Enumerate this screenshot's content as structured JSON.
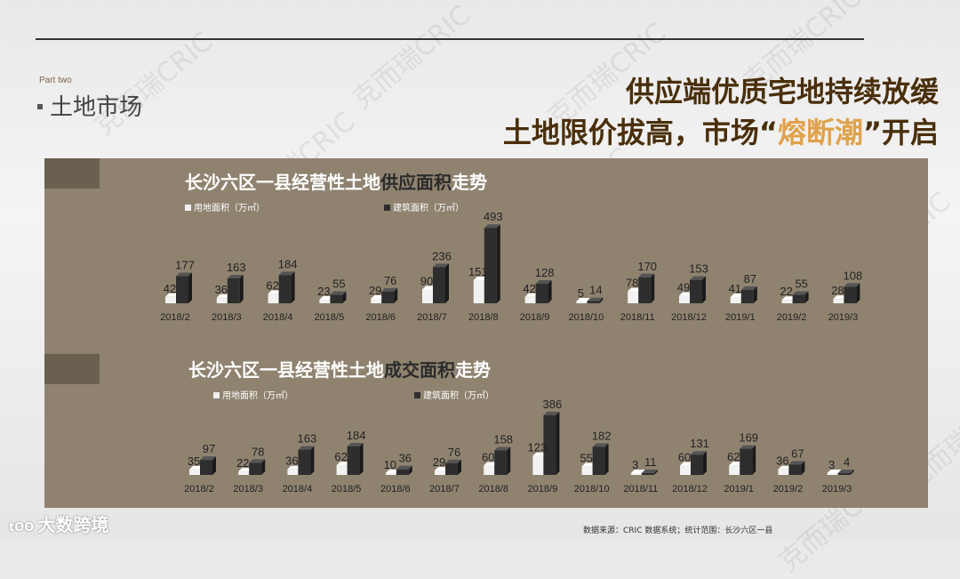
{
  "header": {
    "part_label": "Part two",
    "section_title": "土地市场",
    "headline_line1": "供应端优质宅地持续放缓",
    "headline_line2_a": "土地限价拔高，市场“",
    "headline_line2_b": "熔断潮",
    "headline_line2_c": "”开启"
  },
  "watermark_text": "克而瑞CRIC",
  "colors": {
    "panel": "#8f8370",
    "land_bar": "#f0f0f0",
    "building_bar": "#2e2e2e",
    "headline": "#4a2f0c",
    "headline_highlight": "#e0a24a"
  },
  "charts": [
    {
      "title_a": "长沙六区一县经营性土地",
      "title_em": "供应面积",
      "title_b": "走势",
      "legend_land": "用地面积（万㎡）",
      "legend_building": "建筑面积（万㎡）"
    },
    {
      "title_a": "长沙六区一县经营性土地",
      "title_em": "成交面积",
      "title_b": "走势",
      "legend_land": "用地面积（万㎡）",
      "legend_building": "建筑面积（万㎡）"
    }
  ],
  "chart_data": [
    {
      "type": "bar",
      "categories": [
        "2018/2",
        "2018/3",
        "2018/4",
        "2018/5",
        "2018/6",
        "2018/7",
        "2018/8",
        "2018/9",
        "2018/10",
        "2018/11",
        "2018/12",
        "2019/1",
        "2019/2",
        "2019/3"
      ],
      "series": [
        {
          "name": "用地面积（万㎡）",
          "values": [
            42,
            36,
            62,
            23,
            29,
            90,
            151,
            42,
            5,
            78,
            49,
            41,
            22,
            28
          ]
        },
        {
          "name": "建筑面积（万㎡）",
          "values": [
            177,
            163,
            184,
            55,
            76,
            236,
            493,
            128,
            14,
            170,
            153,
            87,
            55,
            108
          ]
        }
      ],
      "title": "长沙六区一县经营性土地供应面积走势"
    },
    {
      "type": "bar",
      "categories": [
        "2018/2",
        "2018/3",
        "2018/4",
        "2018/5",
        "2018/6",
        "2018/7",
        "2018/8",
        "2018/9",
        "2018/10",
        "2018/11",
        "2018/12",
        "2019/1",
        "2019/2",
        "2019/3"
      ],
      "series": [
        {
          "name": "用地面积（万㎡）",
          "values": [
            35,
            22,
            36,
            62,
            10,
            29,
            60,
            123,
            55,
            3,
            60,
            62,
            36,
            3
          ]
        },
        {
          "name": "建筑面积（万㎡）",
          "values": [
            97,
            78,
            163,
            184,
            36,
            76,
            158,
            386,
            182,
            11,
            131,
            169,
            67,
            4
          ]
        }
      ],
      "title": "长沙六区一县经营性土地成交面积走势"
    }
  ],
  "footer": {
    "note": "数据来源：CRIC 数据系统；统计范围：长沙六区一县",
    "brand": "大数跨境",
    "brand_logo": "tOO"
  }
}
